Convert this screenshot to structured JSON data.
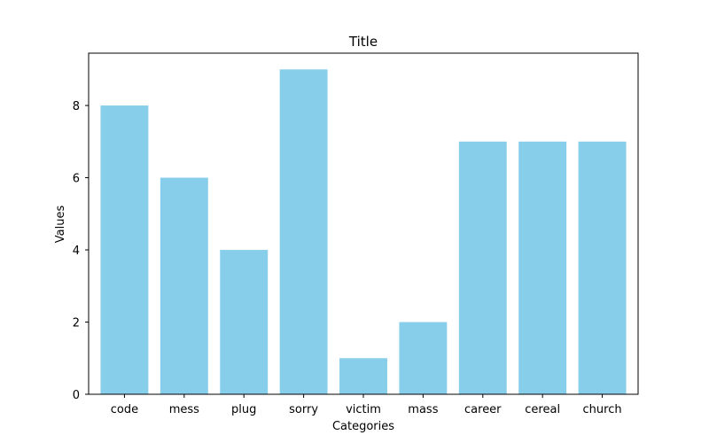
{
  "chart_data": {
    "type": "bar",
    "title": "Title",
    "xlabel": "Categories",
    "ylabel": "Values",
    "categories": [
      "code",
      "mess",
      "plug",
      "sorry",
      "victim",
      "mass",
      "career",
      "cereal",
      "church"
    ],
    "values": [
      8,
      6,
      4,
      9,
      1,
      2,
      7,
      7,
      7
    ],
    "ylim": [
      0,
      9.45
    ],
    "yticks": [
      0,
      2,
      4,
      6,
      8
    ],
    "grid": false,
    "bar_color": "#87CEEB"
  }
}
